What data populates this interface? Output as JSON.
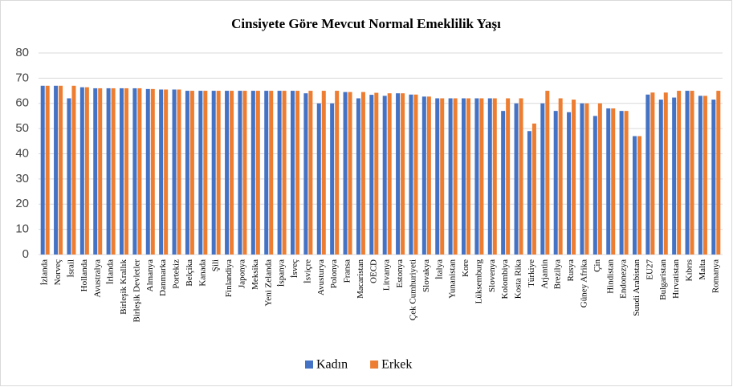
{
  "chart_data": {
    "type": "bar",
    "title": "Cinsiyete Göre Mevcut Normal Emeklilik  Yaşı",
    "categories": [
      "İzlanda",
      "Norveç",
      "İsrail",
      "Hollanda",
      "Avustralya",
      "İrlanda",
      "Birleşik Krallık",
      "Birleşik Devletler",
      "Almanya",
      "Danmarka",
      "Portekiz",
      "Belçika",
      "Kanada",
      "Şili",
      "Finlandiya",
      "Japonya",
      "Meksika",
      "Yeni Zelanda",
      "İspanya",
      "İsveç",
      "İsviçre",
      "Avusturya",
      "Polonya",
      "Fransa",
      "Macaristan",
      "OECD",
      "Litvanya",
      "Estonya",
      "Çek Cumhuriyeti",
      "Slovakya",
      "İtalya",
      "Yunanistan",
      "Kore",
      "Lüksemburg",
      "Slovenya",
      "Kolombiya",
      "Kosta Rika",
      "Türkiye",
      "Arjantin",
      "Brezilya",
      "Rusya",
      "Güney Afrika",
      "Çin",
      "Hindistan",
      "Endonezya",
      "Suudi Arabistan",
      "EU27",
      "Bulgaristan",
      "Hırvatistan",
      "Kıbrıs",
      "Malta",
      "Romanya"
    ],
    "series": [
      {
        "name": "Kadın",
        "color": "#4472c4",
        "values": [
          67,
          67,
          62,
          66.4,
          66,
          66,
          66,
          66,
          65.7,
          65.5,
          65.5,
          65,
          65,
          65,
          65,
          65,
          65,
          65,
          65,
          65,
          64,
          60,
          60,
          64.5,
          62,
          63.4,
          63,
          64,
          63.5,
          62.7,
          62,
          62,
          62,
          62,
          62,
          57,
          60,
          49,
          60,
          57,
          56.5,
          60,
          55,
          58,
          57,
          47,
          63.5,
          61.5,
          62.3,
          65,
          63,
          61.5
        ]
      },
      {
        "name": "Erkek",
        "color": "#ed7d31",
        "values": [
          67,
          67,
          67,
          66.4,
          66,
          66,
          66,
          66,
          65.7,
          65.5,
          65.5,
          65,
          65,
          65,
          65,
          65,
          65,
          65,
          65,
          65,
          65,
          65,
          65,
          64.5,
          64.5,
          64.2,
          64,
          64,
          63.5,
          62.7,
          62,
          62,
          62,
          62,
          62,
          62,
          62,
          52,
          65,
          62,
          61.5,
          60,
          60,
          58,
          57,
          47,
          64.3,
          64.3,
          65,
          65,
          63,
          65
        ]
      }
    ],
    "ylim": [
      0,
      80
    ],
    "yticks": [
      0,
      10,
      20,
      30,
      40,
      50,
      60,
      70,
      80
    ],
    "grid": true,
    "legend": "bottom"
  }
}
